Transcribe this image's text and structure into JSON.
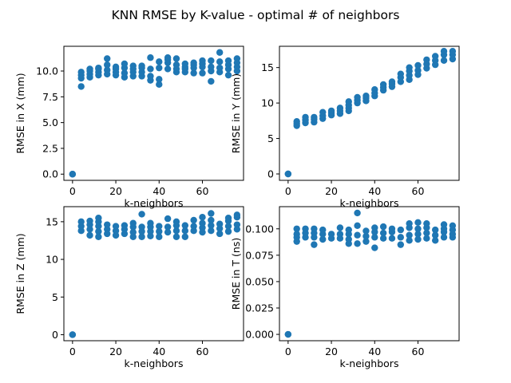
{
  "chart_data": {
    "suptitle": "KNN RMSE by K-value - optimal # of neighbors",
    "marker_color": "#1f77b4",
    "k_values": [
      0,
      4,
      8,
      12,
      16,
      20,
      24,
      28,
      32,
      36,
      40,
      44,
      48,
      52,
      56,
      60,
      64,
      68,
      72,
      76
    ],
    "subplots": [
      {
        "type": "scatter",
        "xlabel": "k-neighbors",
        "ylabel": "RMSE in X (mm)",
        "xlim": [
          -4,
          79
        ],
        "ylim": [
          -0.6,
          12.4
        ],
        "xticks": [
          0,
          20,
          40,
          60
        ],
        "yticks": [
          0.0,
          2.5,
          5.0,
          7.5,
          10.0
        ],
        "ytick_labels": [
          "0.0",
          "2.5",
          "5.0",
          "7.5",
          "10.0"
        ],
        "points": [
          [
            0,
            0.0
          ],
          [
            0,
            0.0
          ],
          [
            4,
            8.5
          ],
          [
            4,
            9.3
          ],
          [
            4,
            9.6
          ],
          [
            4,
            9.9
          ],
          [
            8,
            9.4
          ],
          [
            8,
            9.7
          ],
          [
            8,
            10.0
          ],
          [
            8,
            10.2
          ],
          [
            12,
            9.6
          ],
          [
            12,
            9.9
          ],
          [
            12,
            10.2
          ],
          [
            12,
            10.3
          ],
          [
            16,
            9.7
          ],
          [
            16,
            10.1
          ],
          [
            16,
            10.6
          ],
          [
            16,
            11.2
          ],
          [
            20,
            9.6
          ],
          [
            20,
            9.9
          ],
          [
            20,
            10.2
          ],
          [
            20,
            10.4
          ],
          [
            24,
            9.4
          ],
          [
            24,
            9.8
          ],
          [
            24,
            10.3
          ],
          [
            24,
            10.7
          ],
          [
            28,
            9.5
          ],
          [
            28,
            9.9
          ],
          [
            28,
            10.2
          ],
          [
            28,
            10.5
          ],
          [
            32,
            9.5
          ],
          [
            32,
            9.9
          ],
          [
            32,
            10.3
          ],
          [
            32,
            10.5
          ],
          [
            36,
            9.1
          ],
          [
            36,
            9.5
          ],
          [
            36,
            10.2
          ],
          [
            36,
            11.3
          ],
          [
            40,
            8.7
          ],
          [
            40,
            9.2
          ],
          [
            40,
            10.3
          ],
          [
            40,
            10.9
          ],
          [
            44,
            10.2
          ],
          [
            44,
            10.8
          ],
          [
            44,
            11.1
          ],
          [
            44,
            11.3
          ],
          [
            48,
            9.9
          ],
          [
            48,
            10.2
          ],
          [
            48,
            10.6
          ],
          [
            48,
            11.2
          ],
          [
            52,
            9.9
          ],
          [
            52,
            10.2
          ],
          [
            52,
            10.4
          ],
          [
            52,
            10.7
          ],
          [
            56,
            9.8
          ],
          [
            56,
            10.3
          ],
          [
            56,
            10.6
          ],
          [
            56,
            10.8
          ],
          [
            60,
            9.8
          ],
          [
            60,
            10.4
          ],
          [
            60,
            10.7
          ],
          [
            60,
            11.0
          ],
          [
            64,
            9.0
          ],
          [
            64,
            10.0
          ],
          [
            64,
            10.4
          ],
          [
            64,
            11.0
          ],
          [
            68,
            9.9
          ],
          [
            68,
            10.3
          ],
          [
            68,
            10.9
          ],
          [
            68,
            11.8
          ],
          [
            72,
            9.6
          ],
          [
            72,
            10.2
          ],
          [
            72,
            10.6
          ],
          [
            72,
            11.0
          ],
          [
            76,
            10.0
          ],
          [
            76,
            10.4
          ],
          [
            76,
            10.8
          ],
          [
            76,
            11.2
          ]
        ]
      },
      {
        "type": "scatter",
        "xlabel": "k-neighbors",
        "ylabel": "RMSE in Y (mm)",
        "xlim": [
          -4,
          79
        ],
        "ylim": [
          -0.9,
          18.0
        ],
        "xticks": [
          0,
          20,
          40,
          60
        ],
        "yticks": [
          0,
          5,
          10,
          15
        ],
        "ytick_labels": [
          "0",
          "5",
          "10",
          "15"
        ],
        "points": [
          [
            0,
            0.0
          ],
          [
            0,
            0.0
          ],
          [
            4,
            6.8
          ],
          [
            4,
            7.1
          ],
          [
            4,
            7.4
          ],
          [
            8,
            7.2
          ],
          [
            8,
            7.6
          ],
          [
            8,
            8.0
          ],
          [
            12,
            7.3
          ],
          [
            12,
            7.7
          ],
          [
            12,
            8.0
          ],
          [
            16,
            7.8
          ],
          [
            16,
            8.2
          ],
          [
            16,
            8.7
          ],
          [
            20,
            8.3
          ],
          [
            20,
            8.6
          ],
          [
            20,
            8.9
          ],
          [
            24,
            8.5
          ],
          [
            24,
            8.9
          ],
          [
            24,
            9.3
          ],
          [
            28,
            8.9
          ],
          [
            28,
            9.3
          ],
          [
            28,
            9.7
          ],
          [
            28,
            10.2
          ],
          [
            32,
            10.0
          ],
          [
            32,
            10.4
          ],
          [
            32,
            10.8
          ],
          [
            36,
            10.3
          ],
          [
            36,
            10.7
          ],
          [
            36,
            11.0
          ],
          [
            40,
            11.0
          ],
          [
            40,
            11.4
          ],
          [
            40,
            11.9
          ],
          [
            44,
            11.8
          ],
          [
            44,
            12.2
          ],
          [
            44,
            12.6
          ],
          [
            48,
            12.3
          ],
          [
            48,
            12.7
          ],
          [
            48,
            13.0
          ],
          [
            52,
            13.0
          ],
          [
            52,
            13.6
          ],
          [
            52,
            14.1
          ],
          [
            56,
            13.3
          ],
          [
            56,
            13.9
          ],
          [
            56,
            14.5
          ],
          [
            56,
            15.0
          ],
          [
            60,
            14.0
          ],
          [
            60,
            14.6
          ],
          [
            60,
            15.3
          ],
          [
            64,
            14.9
          ],
          [
            64,
            15.5
          ],
          [
            64,
            16.1
          ],
          [
            68,
            15.4
          ],
          [
            68,
            16.0
          ],
          [
            68,
            16.6
          ],
          [
            72,
            16.0
          ],
          [
            72,
            16.8
          ],
          [
            72,
            17.3
          ],
          [
            76,
            16.2
          ],
          [
            76,
            16.8
          ],
          [
            76,
            17.3
          ]
        ]
      },
      {
        "type": "scatter",
        "xlabel": "k-neighbors",
        "ylabel": "RMSE in Z (mm)",
        "xlim": [
          -4,
          79
        ],
        "ylim": [
          -0.8,
          17.0
        ],
        "xticks": [
          0,
          20,
          40,
          60
        ],
        "yticks": [
          0,
          5,
          10,
          15
        ],
        "ytick_labels": [
          "0",
          "5",
          "10",
          "15"
        ],
        "points": [
          [
            0,
            0.0
          ],
          [
            0,
            0.0
          ],
          [
            4,
            13.8
          ],
          [
            4,
            14.4
          ],
          [
            4,
            15.0
          ],
          [
            8,
            13.2
          ],
          [
            8,
            14.0
          ],
          [
            8,
            14.6
          ],
          [
            8,
            15.1
          ],
          [
            12,
            13.0
          ],
          [
            12,
            13.7
          ],
          [
            12,
            14.4
          ],
          [
            12,
            15.0
          ],
          [
            12,
            15.5
          ],
          [
            16,
            13.4
          ],
          [
            16,
            14.0
          ],
          [
            16,
            14.6
          ],
          [
            20,
            13.2
          ],
          [
            20,
            13.8
          ],
          [
            20,
            14.4
          ],
          [
            24,
            13.4
          ],
          [
            24,
            14.0
          ],
          [
            24,
            14.5
          ],
          [
            28,
            13.0
          ],
          [
            28,
            13.6
          ],
          [
            28,
            14.3
          ],
          [
            28,
            14.8
          ],
          [
            32,
            13.0
          ],
          [
            32,
            13.7
          ],
          [
            32,
            14.3
          ],
          [
            32,
            16.0
          ],
          [
            36,
            13.1
          ],
          [
            36,
            13.7
          ],
          [
            36,
            14.3
          ],
          [
            36,
            14.8
          ],
          [
            40,
            13.0
          ],
          [
            40,
            13.7
          ],
          [
            40,
            14.4
          ],
          [
            44,
            13.6
          ],
          [
            44,
            14.3
          ],
          [
            44,
            15.4
          ],
          [
            48,
            13.0
          ],
          [
            48,
            13.8
          ],
          [
            48,
            14.5
          ],
          [
            48,
            15.0
          ],
          [
            52,
            13.0
          ],
          [
            52,
            13.8
          ],
          [
            52,
            14.5
          ],
          [
            56,
            13.8
          ],
          [
            56,
            14.4
          ],
          [
            56,
            15.2
          ],
          [
            60,
            13.6
          ],
          [
            60,
            14.2
          ],
          [
            60,
            14.8
          ],
          [
            60,
            15.6
          ],
          [
            64,
            13.8
          ],
          [
            64,
            14.5
          ],
          [
            64,
            15.2
          ],
          [
            64,
            16.1
          ],
          [
            68,
            13.4
          ],
          [
            68,
            14.1
          ],
          [
            68,
            14.7
          ],
          [
            72,
            13.7
          ],
          [
            72,
            14.4
          ],
          [
            72,
            15.1
          ],
          [
            72,
            15.5
          ],
          [
            76,
            14.0
          ],
          [
            76,
            14.6
          ],
          [
            76,
            15.6
          ],
          [
            76,
            15.9
          ]
        ]
      },
      {
        "type": "scatter",
        "xlabel": "k-neighbors",
        "ylabel": "RMSE in T (ns)",
        "xlim": [
          -4,
          79
        ],
        "ylim": [
          -0.006,
          0.121
        ],
        "xticks": [
          0,
          20,
          40,
          60
        ],
        "yticks": [
          0.0,
          0.025,
          0.05,
          0.075,
          0.1
        ],
        "ytick_labels": [
          "0.000",
          "0.025",
          "0.050",
          "0.075",
          "0.100"
        ],
        "points": [
          [
            0,
            0.0
          ],
          [
            0,
            0.0
          ],
          [
            4,
            0.088
          ],
          [
            4,
            0.092
          ],
          [
            4,
            0.095
          ],
          [
            4,
            0.1
          ],
          [
            8,
            0.092
          ],
          [
            8,
            0.096
          ],
          [
            8,
            0.1
          ],
          [
            12,
            0.085
          ],
          [
            12,
            0.092
          ],
          [
            12,
            0.096
          ],
          [
            12,
            0.1
          ],
          [
            16,
            0.09
          ],
          [
            16,
            0.095
          ],
          [
            16,
            0.099
          ],
          [
            20,
            0.091
          ],
          [
            20,
            0.095
          ],
          [
            24,
            0.091
          ],
          [
            24,
            0.095
          ],
          [
            24,
            0.101
          ],
          [
            28,
            0.086
          ],
          [
            28,
            0.09
          ],
          [
            28,
            0.095
          ],
          [
            28,
            0.099
          ],
          [
            32,
            0.086
          ],
          [
            32,
            0.094
          ],
          [
            32,
            0.103
          ],
          [
            32,
            0.115
          ],
          [
            36,
            0.088
          ],
          [
            36,
            0.093
          ],
          [
            36,
            0.098
          ],
          [
            40,
            0.082
          ],
          [
            40,
            0.092
          ],
          [
            40,
            0.097
          ],
          [
            40,
            0.101
          ],
          [
            44,
            0.091
          ],
          [
            44,
            0.096
          ],
          [
            44,
            0.102
          ],
          [
            48,
            0.091
          ],
          [
            48,
            0.097
          ],
          [
            48,
            0.1
          ],
          [
            52,
            0.085
          ],
          [
            52,
            0.092
          ],
          [
            52,
            0.099
          ],
          [
            56,
            0.089
          ],
          [
            56,
            0.094
          ],
          [
            56,
            0.101
          ],
          [
            56,
            0.105
          ],
          [
            60,
            0.09
          ],
          [
            60,
            0.095
          ],
          [
            60,
            0.1
          ],
          [
            60,
            0.106
          ],
          [
            64,
            0.091
          ],
          [
            64,
            0.096
          ],
          [
            64,
            0.101
          ],
          [
            64,
            0.105
          ],
          [
            68,
            0.089
          ],
          [
            68,
            0.094
          ],
          [
            68,
            0.099
          ],
          [
            72,
            0.092
          ],
          [
            72,
            0.097
          ],
          [
            72,
            0.1
          ],
          [
            72,
            0.104
          ],
          [
            76,
            0.092
          ],
          [
            76,
            0.095
          ],
          [
            76,
            0.099
          ],
          [
            76,
            0.103
          ]
        ]
      }
    ]
  }
}
